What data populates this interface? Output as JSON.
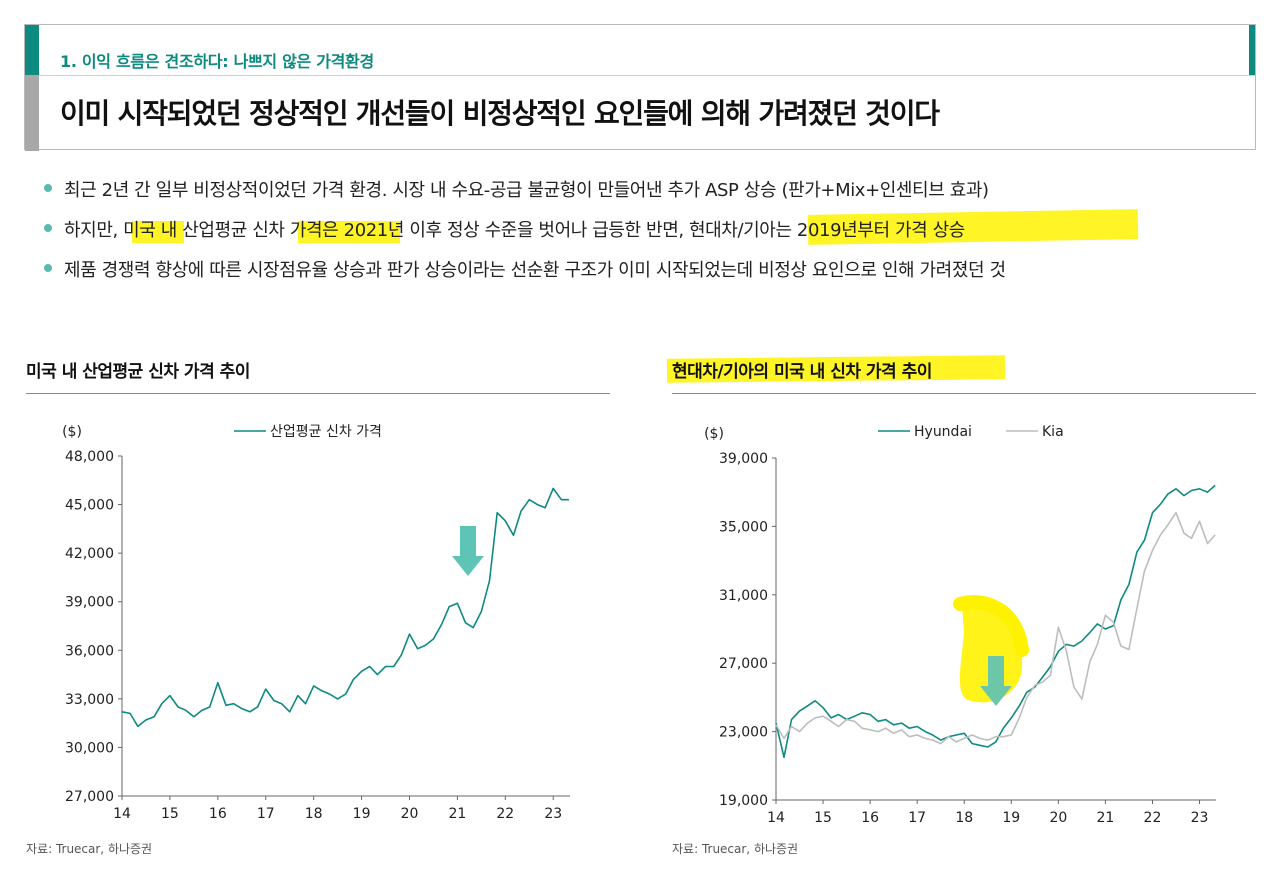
{
  "header": {
    "section_label": "1. 이익 흐름은 견조하다: 나쁘지 않은 가격환경",
    "title": "이미 시작되었던 정상적인 개선들이 비정상적인 요인들에 의해 가려졌던 것이다"
  },
  "bullets": [
    "최근 2년 간 일부 비정상적이었던 가격 환경. 시장 내 수요-공급 불균형이 만들어낸 추가 ASP 상승 (판가+Mix+인센티브 효과)",
    "하지만, 미국 내 산업평균 신차 가격은 2021년 이후 정상 수준을 벗어나 급등한 반면, 현대차/기아는 2019년부터 가격 상승",
    "제품 경쟁력 향상에 따른 시장점유율 상승과 판가 상승이라는 선순환 구조가 이미 시작되었는데 비정상 요인으로 인해 가려졌던 것"
  ],
  "colors": {
    "teal": "#0f8a80",
    "light_teal": "#5bb8b0",
    "arrow": "#5ec4b6",
    "kia_gray": "#bdbdbd",
    "highlight": "#fff200"
  },
  "left_chart": {
    "title": "미국 내 산업평균 신차 가격 추이",
    "source": "자료: Truecar, 하나증권"
  },
  "right_chart": {
    "title": "현대차/기아의 미국 내 신차 가격 추이",
    "source": "자료: Truecar, 하나증권"
  },
  "chart_data": [
    {
      "type": "line",
      "title": "미국 내 산업평균 신차 가격 추이",
      "ylabel": "($)",
      "xlabel": "",
      "ylim": [
        27000,
        48000
      ],
      "yticks": [
        "48,000",
        "45,000",
        "42,000",
        "39,000",
        "36,000",
        "33,000",
        "30,000",
        "27,000"
      ],
      "ytick_values": [
        48000,
        45000,
        42000,
        39000,
        36000,
        33000,
        30000,
        27000
      ],
      "xlim": [
        14,
        23.35
      ],
      "xticks": [
        "14",
        "15",
        "16",
        "17",
        "18",
        "19",
        "20",
        "21",
        "22",
        "23"
      ],
      "xtick_values": [
        14,
        15,
        16,
        17,
        18,
        19,
        20,
        21,
        22,
        23
      ],
      "legend": "top-center",
      "grid": false,
      "annotation": "down-arrow near 21.2",
      "series": [
        {
          "name": "산업평균 신차 가격",
          "color": "#0f8a80",
          "x": [
            14.0,
            14.17,
            14.33,
            14.5,
            14.67,
            14.83,
            15.0,
            15.17,
            15.33,
            15.5,
            15.67,
            15.83,
            16.0,
            16.17,
            16.33,
            16.5,
            16.67,
            16.83,
            17.0,
            17.17,
            17.33,
            17.5,
            17.67,
            17.83,
            18.0,
            18.17,
            18.33,
            18.5,
            18.67,
            18.83,
            19.0,
            19.17,
            19.33,
            19.5,
            19.67,
            19.83,
            20.0,
            20.17,
            20.33,
            20.5,
            20.67,
            20.83,
            21.0,
            21.17,
            21.33,
            21.5,
            21.67,
            21.83,
            22.0,
            22.17,
            22.33,
            22.5,
            22.67,
            22.83,
            23.0,
            23.17,
            23.33
          ],
          "y": [
            32200,
            32100,
            31300,
            31700,
            31900,
            32700,
            33200,
            32500,
            32300,
            31900,
            32300,
            32500,
            34000,
            32600,
            32700,
            32400,
            32200,
            32500,
            33600,
            32900,
            32700,
            32200,
            33200,
            32700,
            33800,
            33500,
            33300,
            33000,
            33300,
            34200,
            34700,
            35000,
            34500,
            35000,
            35000,
            35700,
            37000,
            36100,
            36300,
            36700,
            37600,
            38700,
            38900,
            37700,
            37400,
            38400,
            40300,
            44500,
            44000,
            43100,
            44600,
            45300,
            45000,
            44800,
            46000,
            45300,
            45300
          ]
        }
      ]
    },
    {
      "type": "line",
      "title": "현대차/기아의 미국 내 신차 가격 추이",
      "ylabel": "($)",
      "xlabel": "",
      "ylim": [
        19000,
        39000
      ],
      "yticks": [
        "39,000",
        "35,000",
        "31,000",
        "27,000",
        "23,000",
        "19,000"
      ],
      "ytick_values": [
        39000,
        35000,
        31000,
        27000,
        23000,
        19000
      ],
      "xlim": [
        14,
        23.35
      ],
      "xticks": [
        "14",
        "15",
        "16",
        "17",
        "18",
        "19",
        "20",
        "21",
        "22",
        "23"
      ],
      "xtick_values": [
        14,
        15,
        16,
        17,
        18,
        19,
        20,
        21,
        22,
        23
      ],
      "legend": "top-center",
      "grid": false,
      "annotation": "down-arrow with yellow highlight near 18.7",
      "series": [
        {
          "name": "Hyundai",
          "color": "#0f8a80",
          "x": [
            14.0,
            14.17,
            14.33,
            14.5,
            14.67,
            14.83,
            15.0,
            15.17,
            15.33,
            15.5,
            15.67,
            15.83,
            16.0,
            16.17,
            16.33,
            16.5,
            16.67,
            16.83,
            17.0,
            17.17,
            17.33,
            17.5,
            17.67,
            17.83,
            18.0,
            18.17,
            18.33,
            18.5,
            18.67,
            18.83,
            19.0,
            19.17,
            19.33,
            19.5,
            19.67,
            19.83,
            20.0,
            20.17,
            20.33,
            20.5,
            20.67,
            20.83,
            21.0,
            21.17,
            21.33,
            21.5,
            21.67,
            21.83,
            22.0,
            22.17,
            22.33,
            22.5,
            22.67,
            22.83,
            23.0,
            23.17,
            23.33
          ],
          "y": [
            23500,
            21500,
            23700,
            24200,
            24500,
            24800,
            24400,
            23800,
            24000,
            23700,
            23900,
            24100,
            24000,
            23600,
            23700,
            23400,
            23500,
            23200,
            23300,
            23000,
            22800,
            22500,
            22700,
            22800,
            22900,
            22300,
            22200,
            22100,
            22400,
            23200,
            23800,
            24500,
            25300,
            25600,
            26200,
            26800,
            27700,
            28100,
            28000,
            28300,
            28800,
            29300,
            29000,
            29200,
            30700,
            31600,
            33500,
            34200,
            35800,
            36300,
            36900,
            37200,
            36800,
            37100,
            37200,
            37000,
            37400
          ]
        },
        {
          "name": "Kia",
          "color": "#bdbdbd",
          "x": [
            14.0,
            14.17,
            14.33,
            14.5,
            14.67,
            14.83,
            15.0,
            15.17,
            15.33,
            15.5,
            15.67,
            15.83,
            16.0,
            16.17,
            16.33,
            16.5,
            16.67,
            16.83,
            17.0,
            17.17,
            17.33,
            17.5,
            17.67,
            17.83,
            18.0,
            18.17,
            18.33,
            18.5,
            18.67,
            18.83,
            19.0,
            19.17,
            19.33,
            19.5,
            19.67,
            19.83,
            20.0,
            20.17,
            20.33,
            20.5,
            20.67,
            20.83,
            21.0,
            21.17,
            21.33,
            21.5,
            21.67,
            21.83,
            22.0,
            22.17,
            22.33,
            22.5,
            22.67,
            22.83,
            23.0,
            23.17,
            23.33
          ],
          "y": [
            23400,
            22600,
            23300,
            23000,
            23500,
            23800,
            23900,
            23600,
            23300,
            23700,
            23600,
            23200,
            23100,
            23000,
            23200,
            22900,
            23100,
            22700,
            22800,
            22600,
            22500,
            22300,
            22700,
            22400,
            22600,
            22800,
            22600,
            22500,
            22700,
            22700,
            22800,
            23800,
            25000,
            25700,
            25900,
            26300,
            29100,
            27700,
            25600,
            24900,
            27100,
            28100,
            29800,
            29400,
            28000,
            27800,
            30200,
            32400,
            33600,
            34500,
            35100,
            35800,
            34600,
            34300,
            35300,
            34000,
            34500
          ]
        }
      ]
    }
  ]
}
